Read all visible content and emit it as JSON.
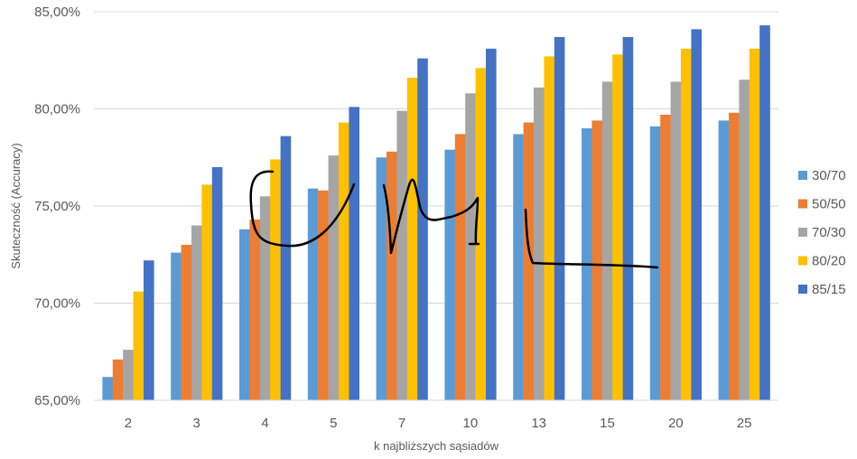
{
  "chart_data": {
    "type": "bar",
    "title": "",
    "xlabel": "k najbliższych sąsiadów",
    "ylabel": "Skuteczność (Accuracy)",
    "ylim": [
      65,
      85
    ],
    "yticks": [
      65,
      70,
      75,
      80,
      85
    ],
    "ytick_labels": [
      "65,00%",
      "70,00%",
      "75,00%",
      "80,00%",
      "85,00%"
    ],
    "categories": [
      "2",
      "3",
      "4",
      "5",
      "7",
      "10",
      "13",
      "15",
      "20",
      "25"
    ],
    "grid": true,
    "legend_position": "right",
    "series": [
      {
        "name": "30/70",
        "color": "#5B9BD5",
        "values": [
          66.2,
          72.6,
          73.8,
          75.9,
          77.5,
          77.9,
          78.7,
          79.0,
          79.1,
          79.4
        ]
      },
      {
        "name": "50/50",
        "color": "#ED7D31",
        "values": [
          67.1,
          73.0,
          74.3,
          75.8,
          77.8,
          78.7,
          79.3,
          79.4,
          79.7,
          79.8
        ]
      },
      {
        "name": "70/30",
        "color": "#A5A5A5",
        "values": [
          67.6,
          74.0,
          75.5,
          77.6,
          79.9,
          80.8,
          81.1,
          81.4,
          81.4,
          81.5
        ]
      },
      {
        "name": "80/20",
        "color": "#FFC000",
        "values": [
          70.6,
          76.1,
          77.4,
          79.3,
          81.6,
          82.1,
          82.7,
          82.8,
          83.1,
          83.1
        ]
      },
      {
        "name": "85/15",
        "color": "#4472C4",
        "values": [
          72.2,
          77.0,
          78.6,
          80.1,
          82.6,
          83.1,
          83.7,
          83.7,
          84.1,
          84.3
        ]
      }
    ]
  }
}
